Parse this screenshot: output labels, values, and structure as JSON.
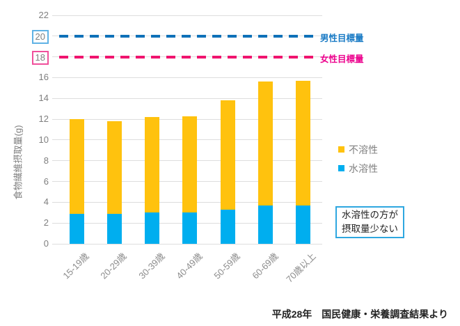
{
  "chart": {
    "y_axis_title": "食物繊維摂取量(g)",
    "caption": "平成28年　国民健康・栄養調査結果より",
    "annotation": {
      "line1": "水溶性の方が",
      "line2": "摂取量少ない",
      "border_color": "#2EA7E0"
    },
    "colors": {
      "gridline": "#DDDDDD",
      "tick_text": "#7F7F7F",
      "background": "#FFFFFF"
    }
  },
  "chart_data": {
    "type": "bar",
    "stacked": true,
    "title": "",
    "xlabel": "",
    "ylabel": "食物繊維摂取量(g)",
    "ylim": [
      0,
      22
    ],
    "ytick_step": 2,
    "grid": true,
    "legend_position": "right",
    "categories": [
      "15-19歳",
      "20-29歳",
      "30-39歳",
      "40-49歳",
      "50-59歳",
      "60-69歳",
      "70歳以上"
    ],
    "series": [
      {
        "name": "水溶性",
        "color": "#00AEEF",
        "values": [
          2.9,
          2.9,
          3.0,
          3.0,
          3.3,
          3.7,
          3.7
        ]
      },
      {
        "name": "不溶性",
        "color": "#FFC20E",
        "values": [
          9.1,
          8.9,
          9.2,
          9.3,
          10.5,
          11.9,
          12.0
        ]
      }
    ],
    "totals": [
      12.0,
      11.8,
      12.2,
      12.3,
      13.8,
      15.6,
      15.7
    ],
    "targets": [
      {
        "label": "男性目標量",
        "value": 20,
        "line_color": "#0E71B8",
        "text_color": "#1779C4",
        "box_border": "#5FB2E5"
      },
      {
        "label": "女性目標量",
        "value": 18,
        "line_color": "#F0146E",
        "text_color": "#EC008C",
        "box_border": "#F0509B"
      }
    ]
  }
}
